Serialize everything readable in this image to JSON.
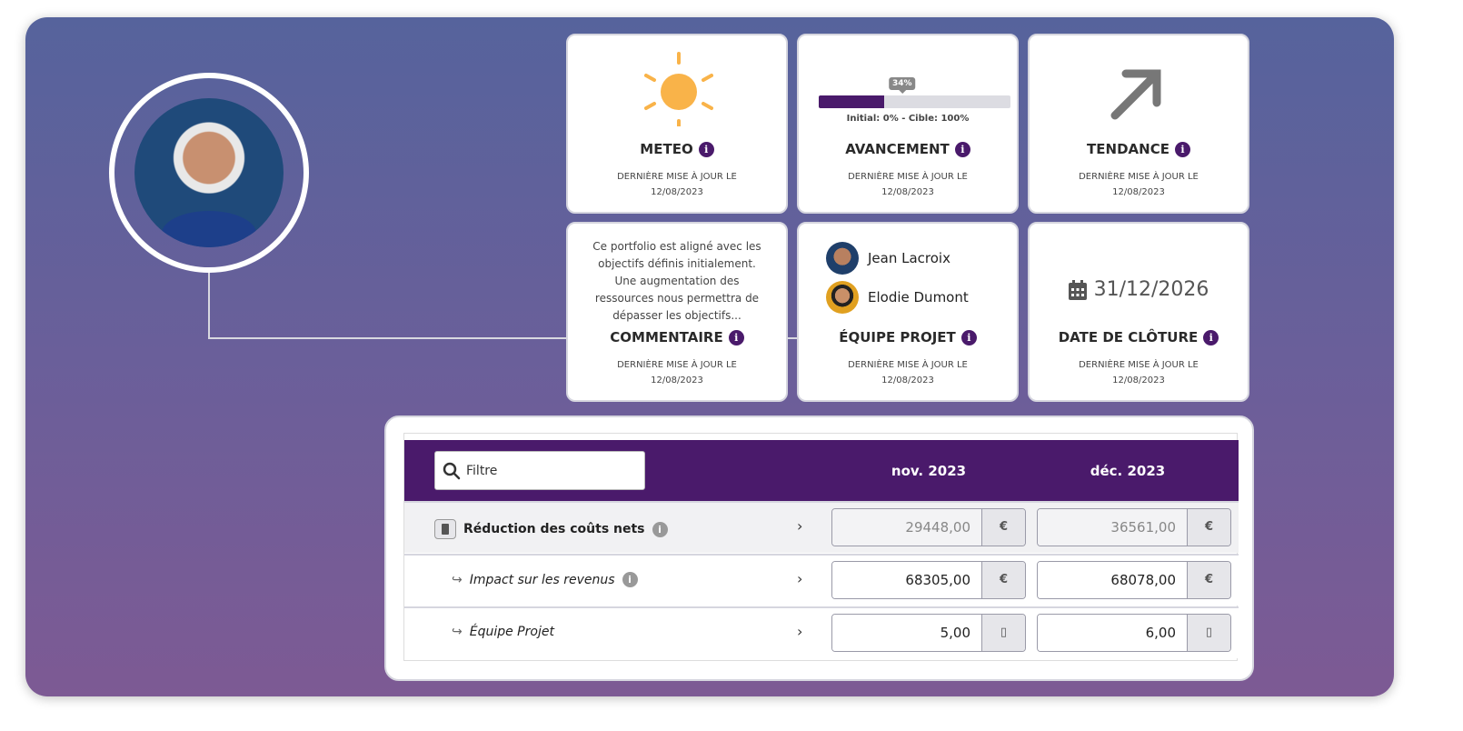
{
  "colors": {
    "brand": "#4a1a6b",
    "sun": "#f9b349"
  },
  "cards": {
    "meteo": {
      "title": "METEO",
      "updated_label": "DERNIÈRE MISE À JOUR LE",
      "updated_date": "12/08/2023",
      "icon": "sun-icon"
    },
    "avancement": {
      "title": "AVANCEMENT",
      "updated_label": "DERNIÈRE MISE À JOUR LE",
      "updated_date": "12/08/2023",
      "progress_percent": 34,
      "progress_tooltip": "34%",
      "progress_caption": "Initial: 0% - Cible: 100%"
    },
    "tendance": {
      "title": "TENDANCE",
      "updated_label": "DERNIÈRE MISE À JOUR LE",
      "updated_date": "12/08/2023",
      "icon": "arrow-up-right-icon"
    },
    "commentaire": {
      "title": "COMMENTAIRE",
      "updated_label": "DERNIÈRE MISE À JOUR LE",
      "updated_date": "12/08/2023",
      "text": "Ce portfolio est aligné avec les objectifs définis initialement. Une augmentation des ressources nous permettra de dépasser les objectifs..."
    },
    "equipe": {
      "title": "ÉQUIPE PROJET",
      "updated_label": "DERNIÈRE MISE À JOUR LE",
      "updated_date": "12/08/2023",
      "members": [
        "Jean Lacroix",
        "Elodie Dumont"
      ]
    },
    "cloture": {
      "title": "DATE DE CLÔTURE",
      "updated_label": "DERNIÈRE MISE À JOUR LE",
      "updated_date": "12/08/2023",
      "date": "31/12/2026"
    }
  },
  "table": {
    "filter_placeholder": "Filtre",
    "months": [
      "nov. 2023",
      "déc. 2023"
    ],
    "rows": [
      {
        "label": "Réduction des coûts nets",
        "values": [
          "29448,00",
          "36561,00"
        ],
        "unit": "€"
      },
      {
        "label": "Impact sur les revenus",
        "values": [
          "68305,00",
          "68078,00"
        ],
        "unit": "€"
      },
      {
        "label": "Équipe Projet",
        "values": [
          "5,00",
          "6,00"
        ],
        "unit": "▯"
      }
    ]
  }
}
